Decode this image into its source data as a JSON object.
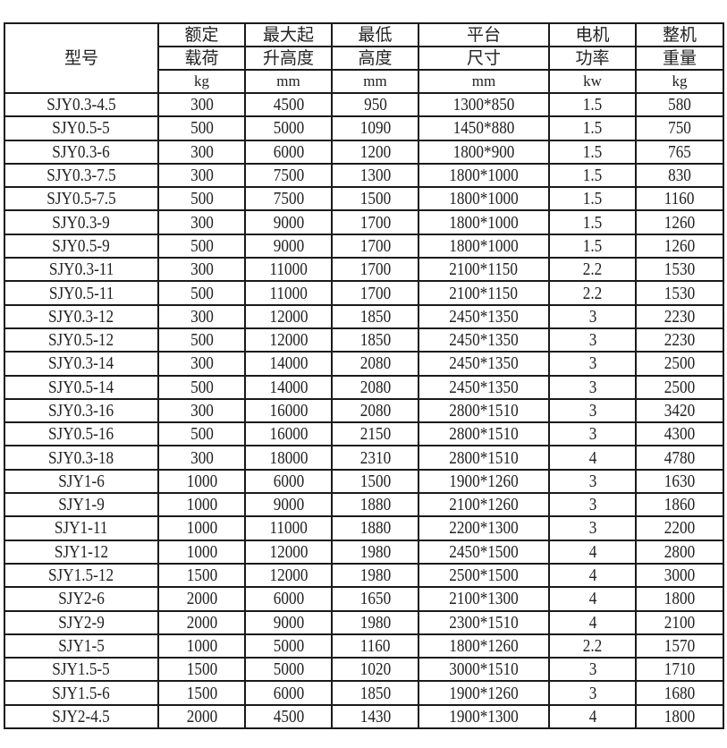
{
  "table": {
    "header": {
      "model": "型号",
      "columns": [
        {
          "line1": "额定",
          "line2": "载荷",
          "unit": "kg"
        },
        {
          "line1": "最大起",
          "line2": "升高度",
          "unit": "mm"
        },
        {
          "line1": "最低",
          "line2": "高度",
          "unit": "mm"
        },
        {
          "line1": "平台",
          "line2": "尺寸",
          "unit": "mm"
        },
        {
          "line1": "电机",
          "line2": "功率",
          "unit": "kw"
        },
        {
          "line1": "整机",
          "line2": "重量",
          "unit": "kg"
        }
      ]
    },
    "rows": [
      [
        "SJY0.3-4.5",
        "300",
        "4500",
        "950",
        "1300*850",
        "1.5",
        "580"
      ],
      [
        "SJY0.5-5",
        "500",
        "5000",
        "1090",
        "1450*880",
        "1.5",
        "750"
      ],
      [
        "SJY0.3-6",
        "300",
        "6000",
        "1200",
        "1800*900",
        "1.5",
        "765"
      ],
      [
        "SJY0.3-7.5",
        "300",
        "7500",
        "1300",
        "1800*1000",
        "1.5",
        "830"
      ],
      [
        "SJY0.5-7.5",
        "500",
        "7500",
        "1500",
        "1800*1000",
        "1.5",
        "1160"
      ],
      [
        "SJY0.3-9",
        "300",
        "9000",
        "1700",
        "1800*1000",
        "1.5",
        "1260"
      ],
      [
        "SJY0.5-9",
        "500",
        "9000",
        "1700",
        "1800*1000",
        "1.5",
        "1260"
      ],
      [
        "SJY0.3-11",
        "300",
        "11000",
        "1700",
        "2100*1150",
        "2.2",
        "1530"
      ],
      [
        "SJY0.5-11",
        "500",
        "11000",
        "1700",
        "2100*1150",
        "2.2",
        "1530"
      ],
      [
        "SJY0.3-12",
        "300",
        "12000",
        "1850",
        "2450*1350",
        "3",
        "2230"
      ],
      [
        "SJY0.5-12",
        "500",
        "12000",
        "1850",
        "2450*1350",
        "3",
        "2230"
      ],
      [
        "SJY0.3-14",
        "300",
        "14000",
        "2080",
        "2450*1350",
        "3",
        "2500"
      ],
      [
        "SJY0.5-14",
        "500",
        "14000",
        "2080",
        "2450*1350",
        "3",
        "2500"
      ],
      [
        "SJY0.3-16",
        "300",
        "16000",
        "2080",
        "2800*1510",
        "3",
        "3420"
      ],
      [
        "SJY0.5-16",
        "500",
        "16000",
        "2150",
        "2800*1510",
        "3",
        "4300"
      ],
      [
        "SJY0.3-18",
        "300",
        "18000",
        "2310",
        "2800*1510",
        "4",
        "4780"
      ],
      [
        "SJY1-6",
        "1000",
        "6000",
        "1500",
        "1900*1260",
        "3",
        "1630"
      ],
      [
        "SJY1-9",
        "1000",
        "9000",
        "1880",
        "2100*1260",
        "3",
        "1860"
      ],
      [
        "SJY1-11",
        "1000",
        "11000",
        "1880",
        "2200*1300",
        "3",
        "2200"
      ],
      [
        "SJY1-12",
        "1000",
        "12000",
        "1980",
        "2450*1500",
        "4",
        "2800"
      ],
      [
        "SJY1.5-12",
        "1500",
        "12000",
        "1980",
        "2500*1500",
        "4",
        "3000"
      ],
      [
        "SJY2-6",
        "2000",
        "6000",
        "1650",
        "2100*1300",
        "4",
        "1800"
      ],
      [
        "SJY2-9",
        "2000",
        "9000",
        "1980",
        "2300*1510",
        "4",
        "2100"
      ],
      [
        "SJY1-5",
        "1000",
        "5000",
        "1160",
        "1800*1260",
        "2.2",
        "1570"
      ],
      [
        "SJY1.5-5",
        "1500",
        "5000",
        "1020",
        "3000*1510",
        "3",
        "1710"
      ],
      [
        "SJY1.5-6",
        "1500",
        "6000",
        "1850",
        "1900*1260",
        "3",
        "1680"
      ],
      [
        "SJY2-4.5",
        "2000",
        "4500",
        "1430",
        "1900*1300",
        "4",
        "1800"
      ]
    ]
  }
}
